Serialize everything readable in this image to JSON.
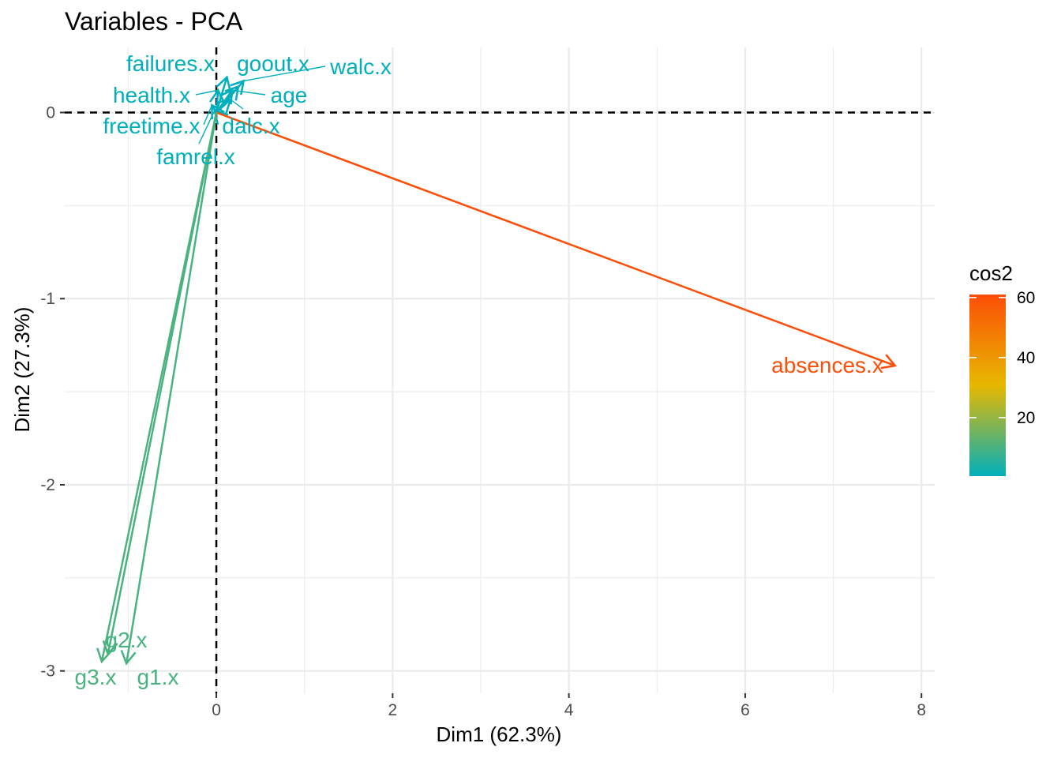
{
  "chart_data": {
    "type": "scatter",
    "title": "Variables - PCA",
    "xlabel": "Dim1 (62.3%)",
    "ylabel": "Dim2 (27.3%)",
    "xlim": [
      -1.72,
      8.15
    ],
    "ylim": [
      -3.12,
      0.35
    ],
    "x_ticks": [
      0,
      2,
      4,
      6,
      8
    ],
    "y_ticks": [
      0,
      -1,
      -2,
      -3
    ],
    "grid": true,
    "reference_lines": {
      "x": 0,
      "y": 0,
      "style": "dashed"
    },
    "legend": {
      "title": "cos2",
      "placement": "right",
      "range": [
        0.5,
        61
      ],
      "ticks": [
        20,
        40,
        60
      ],
      "colors": [
        "#00AFBB",
        "#E7B800",
        "#FC4E07"
      ]
    },
    "variables": [
      {
        "name": "failures.x",
        "x": 0.12,
        "y": 0.19,
        "cos2": 0.05
      },
      {
        "name": "goout.x",
        "x": 0.25,
        "y": 0.14,
        "cos2": 0.08
      },
      {
        "name": "walc.x",
        "x": 0.31,
        "y": 0.17,
        "cos2": 0.12
      },
      {
        "name": "health.x",
        "x": 0.02,
        "y": 0.12,
        "cos2": 0.02
      },
      {
        "name": "age",
        "x": 0.18,
        "y": 0.12,
        "cos2": 0.05
      },
      {
        "name": "freetime.x",
        "x": -0.05,
        "y": 0.04,
        "cos2": 0.01
      },
      {
        "name": "dalc.x",
        "x": 0.16,
        "y": 0.07,
        "cos2": 0.03
      },
      {
        "name": "famrel.x",
        "x": -0.02,
        "y": 0.01,
        "cos2": 0.0
      },
      {
        "name": "absences.x",
        "x": 7.7,
        "y": -1.36,
        "cos2": 61
      },
      {
        "name": "g1.x",
        "x": -1.02,
        "y": -2.96,
        "cos2": 9.8
      },
      {
        "name": "g2.x",
        "x": -1.23,
        "y": -2.91,
        "cos2": 9.99
      },
      {
        "name": "g3.x",
        "x": -1.3,
        "y": -2.95,
        "cos2": 10.4
      }
    ]
  }
}
